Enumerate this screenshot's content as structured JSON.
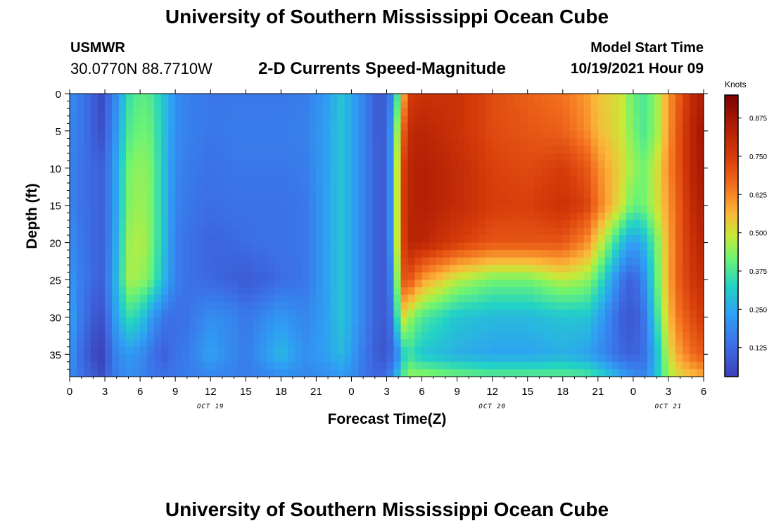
{
  "header": {
    "title": "University of Southern Mississippi Ocean Cube",
    "station": "USMWR",
    "coords": "30.0770N  88.7710W",
    "subtitle": "2-D Currents Speed-Magnitude",
    "model_start_label": "Model Start Time",
    "model_start_value": "10/19/2021 Hour 09"
  },
  "footer": {
    "title": "University of Southern Mississippi Ocean Cube"
  },
  "chart_data": {
    "type": "heatmap",
    "xlabel": "Forecast Time(Z)",
    "ylabel": "Depth (ft)",
    "x_unit": "forecast hours from 00Z Oct 19",
    "xlim": [
      0,
      54
    ],
    "ylim": [
      0,
      38
    ],
    "x_ticks": [
      0,
      3,
      6,
      9,
      12,
      15,
      18,
      21,
      24,
      27,
      30,
      33,
      36,
      39,
      42,
      45,
      48,
      51,
      54
    ],
    "x_tick_labels": [
      "0",
      "3",
      "6",
      "9",
      "12",
      "15",
      "18",
      "21",
      "0",
      "3",
      "6",
      "9",
      "12",
      "15",
      "18",
      "21",
      "0",
      "3",
      "6"
    ],
    "y_ticks": [
      0,
      5,
      10,
      15,
      20,
      25,
      30,
      35
    ],
    "y_tick_labels": [
      "0",
      "5",
      "10",
      "15",
      "20",
      "25",
      "30",
      "35"
    ],
    "date_labels": [
      {
        "x": 12,
        "text": "OCT 19"
      },
      {
        "x": 36,
        "text": "OCT 20"
      },
      {
        "x": 51,
        "text": "OCT 21"
      }
    ],
    "colorbar": {
      "title": "Knots",
      "min": 0.03,
      "max": 0.95,
      "ticks": [
        0.125,
        0.25,
        0.375,
        0.5,
        0.625,
        0.75,
        0.875
      ],
      "tick_labels": [
        "0.125",
        "0.250",
        "0.375",
        "0.500",
        "0.625",
        "0.750",
        "0.875"
      ]
    },
    "depths": [
      0,
      5,
      10,
      15,
      20,
      25,
      30,
      35,
      38
    ],
    "times": [
      0,
      1,
      2,
      2.6,
      3,
      4,
      5,
      6,
      7,
      8,
      9,
      10,
      12,
      14,
      15,
      17,
      18,
      20,
      22,
      23,
      24,
      25,
      26,
      26.5,
      27,
      27.5,
      28,
      28.5,
      29,
      30,
      33,
      36,
      39,
      42,
      44,
      45,
      47,
      48,
      49,
      50,
      51,
      52,
      53,
      54
    ],
    "values_by_depth": [
      [
        0.2,
        0.15,
        0.1,
        0.05,
        0.09,
        0.2,
        0.35,
        0.4,
        0.38,
        0.3,
        0.2,
        0.17,
        0.15,
        0.15,
        0.15,
        0.15,
        0.15,
        0.16,
        0.23,
        0.3,
        0.25,
        0.18,
        0.1,
        0.09,
        0.1,
        0.2,
        0.4,
        0.6,
        0.75,
        0.78,
        0.78,
        0.72,
        0.68,
        0.65,
        0.6,
        0.55,
        0.5,
        0.4,
        0.38,
        0.45,
        0.6,
        0.7,
        0.8,
        0.85
      ],
      [
        0.18,
        0.15,
        0.1,
        0.06,
        0.1,
        0.22,
        0.38,
        0.42,
        0.4,
        0.3,
        0.2,
        0.17,
        0.15,
        0.16,
        0.16,
        0.16,
        0.16,
        0.17,
        0.24,
        0.3,
        0.25,
        0.18,
        0.1,
        0.09,
        0.1,
        0.25,
        0.5,
        0.7,
        0.8,
        0.82,
        0.78,
        0.72,
        0.7,
        0.68,
        0.62,
        0.56,
        0.5,
        0.42,
        0.38,
        0.45,
        0.6,
        0.72,
        0.82,
        0.88
      ],
      [
        0.18,
        0.14,
        0.12,
        0.1,
        0.12,
        0.25,
        0.42,
        0.45,
        0.42,
        0.3,
        0.19,
        0.16,
        0.14,
        0.15,
        0.15,
        0.15,
        0.15,
        0.16,
        0.24,
        0.3,
        0.25,
        0.18,
        0.11,
        0.09,
        0.1,
        0.25,
        0.55,
        0.75,
        0.82,
        0.84,
        0.8,
        0.74,
        0.72,
        0.75,
        0.7,
        0.62,
        0.52,
        0.45,
        0.42,
        0.5,
        0.62,
        0.72,
        0.82,
        0.87
      ],
      [
        0.18,
        0.14,
        0.12,
        0.1,
        0.12,
        0.25,
        0.43,
        0.46,
        0.42,
        0.3,
        0.18,
        0.15,
        0.13,
        0.14,
        0.14,
        0.14,
        0.14,
        0.15,
        0.24,
        0.3,
        0.25,
        0.18,
        0.11,
        0.09,
        0.1,
        0.25,
        0.55,
        0.76,
        0.82,
        0.84,
        0.8,
        0.75,
        0.74,
        0.78,
        0.74,
        0.65,
        0.5,
        0.4,
        0.42,
        0.5,
        0.6,
        0.7,
        0.8,
        0.85
      ],
      [
        0.2,
        0.15,
        0.12,
        0.1,
        0.12,
        0.26,
        0.45,
        0.48,
        0.42,
        0.3,
        0.17,
        0.14,
        0.11,
        0.12,
        0.13,
        0.14,
        0.14,
        0.15,
        0.24,
        0.3,
        0.25,
        0.18,
        0.11,
        0.09,
        0.1,
        0.25,
        0.55,
        0.75,
        0.82,
        0.82,
        0.75,
        0.7,
        0.7,
        0.7,
        0.62,
        0.52,
        0.3,
        0.22,
        0.28,
        0.42,
        0.58,
        0.7,
        0.78,
        0.83
      ],
      [
        0.22,
        0.16,
        0.12,
        0.1,
        0.13,
        0.28,
        0.46,
        0.46,
        0.4,
        0.28,
        0.17,
        0.14,
        0.12,
        0.1,
        0.09,
        0.11,
        0.13,
        0.15,
        0.24,
        0.3,
        0.25,
        0.18,
        0.11,
        0.09,
        0.1,
        0.2,
        0.5,
        0.7,
        0.7,
        0.6,
        0.48,
        0.42,
        0.42,
        0.48,
        0.45,
        0.38,
        0.15,
        0.1,
        0.2,
        0.4,
        0.58,
        0.7,
        0.76,
        0.8
      ],
      [
        0.25,
        0.15,
        0.09,
        0.07,
        0.1,
        0.25,
        0.35,
        0.32,
        0.22,
        0.15,
        0.13,
        0.14,
        0.2,
        0.18,
        0.15,
        0.2,
        0.22,
        0.18,
        0.24,
        0.3,
        0.25,
        0.18,
        0.11,
        0.09,
        0.1,
        0.15,
        0.4,
        0.5,
        0.45,
        0.38,
        0.3,
        0.28,
        0.28,
        0.3,
        0.3,
        0.25,
        0.1,
        0.08,
        0.15,
        0.35,
        0.55,
        0.66,
        0.72,
        0.76
      ],
      [
        0.22,
        0.12,
        0.06,
        0.03,
        0.07,
        0.18,
        0.22,
        0.2,
        0.14,
        0.1,
        0.14,
        0.16,
        0.24,
        0.18,
        0.16,
        0.24,
        0.28,
        0.2,
        0.24,
        0.28,
        0.23,
        0.16,
        0.1,
        0.08,
        0.09,
        0.12,
        0.2,
        0.32,
        0.35,
        0.3,
        0.26,
        0.24,
        0.24,
        0.26,
        0.24,
        0.2,
        0.12,
        0.1,
        0.14,
        0.28,
        0.5,
        0.6,
        0.66,
        0.7
      ],
      [
        0.2,
        0.14,
        0.1,
        0.05,
        0.1,
        0.17,
        0.2,
        0.18,
        0.15,
        0.14,
        0.15,
        0.16,
        0.18,
        0.17,
        0.16,
        0.18,
        0.2,
        0.18,
        0.2,
        0.22,
        0.2,
        0.15,
        0.12,
        0.12,
        0.13,
        0.2,
        0.3,
        0.4,
        0.45,
        0.45,
        0.42,
        0.4,
        0.4,
        0.4,
        0.38,
        0.35,
        0.25,
        0.2,
        0.18,
        0.3,
        0.45,
        0.52,
        0.55,
        0.58
      ]
    ]
  }
}
